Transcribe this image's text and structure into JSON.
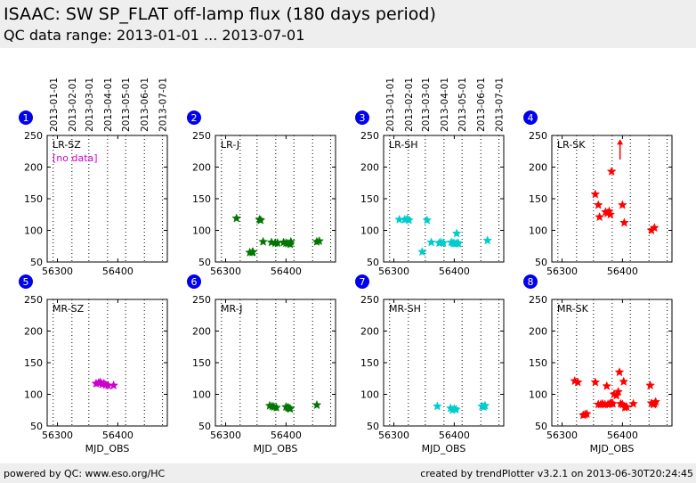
{
  "header": {
    "title": "ISAAC: SW SP_FLAT off-lamp flux (180 days period)",
    "subtitle": "QC data range: 2013-01-01 ... 2013-07-01"
  },
  "footer": {
    "left": "powered by QC: www.eso.org/HC",
    "right": "created by trendPlotter v3.2.1 on 2013-06-30T20:24:45"
  },
  "no_data_label": "[no data]",
  "colors": {
    "panel_badge": "#0000ee",
    "LR-SZ": "#cc00cc",
    "MR-SZ": "#cc00cc",
    "LR-J": "#007700",
    "MR-J": "#007700",
    "LR-SH": "#00cccc",
    "MR-SH": "#00cccc",
    "LR-SK": "#ff0000",
    "MR-SK": "#ff0000"
  },
  "chart_data": [
    {
      "panel": "1",
      "label": "LR-SZ",
      "type": "scatter",
      "marker": "star",
      "xlabel": "",
      "x_ticks": [
        56300,
        56400
      ],
      "y_ticks": [
        50,
        100,
        150,
        200,
        250
      ],
      "xlim": [
        56283,
        56482
      ],
      "ylim": [
        50,
        250
      ],
      "top_axis_dates": [
        "2013-01-01",
        "2013-02-01",
        "2013-03-01",
        "2013-04-01",
        "2013-05-01",
        "2013-06-01",
        "2013-07-01"
      ],
      "no_data": true,
      "points": []
    },
    {
      "panel": "2",
      "label": "LR-J",
      "type": "scatter",
      "marker": "star",
      "xlabel": "",
      "x_ticks": [
        56300,
        56400
      ],
      "y_ticks": [
        50,
        100,
        150,
        200,
        250
      ],
      "xlim": [
        56283,
        56482
      ],
      "ylim": [
        50,
        250
      ],
      "points": [
        [
          56318,
          119
        ],
        [
          56340,
          65
        ],
        [
          56344,
          65
        ],
        [
          56345,
          66
        ],
        [
          56356,
          117
        ],
        [
          56358,
          116
        ],
        [
          56362,
          82
        ],
        [
          56376,
          81
        ],
        [
          56382,
          80
        ],
        [
          56386,
          80
        ],
        [
          56396,
          81
        ],
        [
          56400,
          80
        ],
        [
          56403,
          79
        ],
        [
          56407,
          78
        ],
        [
          56408,
          82
        ],
        [
          56451,
          82
        ],
        [
          56455,
          83
        ]
      ]
    },
    {
      "panel": "3",
      "label": "LR-SH",
      "type": "scatter",
      "marker": "star",
      "xlabel": "",
      "x_ticks": [
        56300,
        56400
      ],
      "y_ticks": [
        50,
        100,
        150,
        200,
        250
      ],
      "xlim": [
        56283,
        56482
      ],
      "ylim": [
        50,
        250
      ],
      "top_axis_dates": [
        "2013-01-01",
        "2013-02-01",
        "2013-03-01",
        "2013-04-01",
        "2013-05-01",
        "2013-06-01",
        "2013-07-01"
      ],
      "points": [
        [
          56309,
          117
        ],
        [
          56318,
          117
        ],
        [
          56322,
          118
        ],
        [
          56325,
          116
        ],
        [
          56347,
          66
        ],
        [
          56355,
          116
        ],
        [
          56362,
          81
        ],
        [
          56375,
          80
        ],
        [
          56378,
          81
        ],
        [
          56382,
          80
        ],
        [
          56395,
          81
        ],
        [
          56398,
          80
        ],
        [
          56400,
          79
        ],
        [
          56403,
          79
        ],
        [
          56404,
          95
        ],
        [
          56406,
          80
        ],
        [
          56407,
          79
        ],
        [
          56455,
          84
        ]
      ]
    },
    {
      "panel": "4",
      "label": "LR-SK",
      "type": "scatter",
      "marker": "star",
      "xlabel": "",
      "x_ticks": [
        56300,
        56400
      ],
      "y_ticks": [
        50,
        100,
        150,
        200,
        250
      ],
      "xlim": [
        56283,
        56482
      ],
      "ylim": [
        50,
        250
      ],
      "points": [
        [
          56355,
          157
        ],
        [
          56360,
          140
        ],
        [
          56362,
          121
        ],
        [
          56372,
          129
        ],
        [
          56375,
          127
        ],
        [
          56378,
          130
        ],
        [
          56380,
          125
        ],
        [
          56382,
          193
        ],
        [
          56400,
          140
        ],
        [
          56403,
          112
        ],
        [
          56448,
          100
        ],
        [
          56453,
          104
        ]
      ],
      "arrows": [
        {
          "x": 56396,
          "from": 212,
          "to": 244
        }
      ]
    },
    {
      "panel": "5",
      "label": "MR-SZ",
      "type": "scatter",
      "marker": "star",
      "xlabel": "MJD_OBS",
      "x_ticks": [
        56300,
        56400
      ],
      "y_ticks": [
        50,
        100,
        150,
        200,
        250
      ],
      "xlim": [
        56283,
        56482
      ],
      "ylim": [
        50,
        250
      ],
      "points": [
        [
          56364,
          117
        ],
        [
          56368,
          118
        ],
        [
          56371,
          119
        ],
        [
          56374,
          116
        ],
        [
          56377,
          117
        ],
        [
          56380,
          115
        ],
        [
          56384,
          114
        ],
        [
          56393,
          114
        ]
      ]
    },
    {
      "panel": "6",
      "label": "MR-J",
      "type": "scatter",
      "marker": "star",
      "xlabel": "MJD_OBS",
      "x_ticks": [
        56300,
        56400
      ],
      "y_ticks": [
        50,
        100,
        150,
        200,
        250
      ],
      "xlim": [
        56283,
        56482
      ],
      "ylim": [
        50,
        250
      ],
      "points": [
        [
          56373,
          82
        ],
        [
          56377,
          81
        ],
        [
          56380,
          80
        ],
        [
          56384,
          79
        ],
        [
          56400,
          80
        ],
        [
          56403,
          79
        ],
        [
          56405,
          78
        ],
        [
          56407,
          77
        ],
        [
          56451,
          83
        ]
      ]
    },
    {
      "panel": "7",
      "label": "MR-SH",
      "type": "scatter",
      "marker": "star",
      "xlabel": "MJD_OBS",
      "x_ticks": [
        56300,
        56400
      ],
      "y_ticks": [
        50,
        100,
        150,
        200,
        250
      ],
      "xlim": [
        56283,
        56482
      ],
      "ylim": [
        50,
        250
      ],
      "points": [
        [
          56372,
          81
        ],
        [
          56394,
          78
        ],
        [
          56397,
          75
        ],
        [
          56400,
          77
        ],
        [
          56403,
          76
        ],
        [
          56446,
          81
        ],
        [
          56449,
          80
        ],
        [
          56451,
          82
        ]
      ]
    },
    {
      "panel": "8",
      "label": "MR-SK",
      "type": "scatter",
      "marker": "star",
      "xlabel": "MJD_OBS",
      "x_ticks": [
        56300,
        56400
      ],
      "y_ticks": [
        50,
        100,
        150,
        200,
        250
      ],
      "xlim": [
        56283,
        56482
      ],
      "ylim": [
        50,
        250
      ],
      "points": [
        [
          56321,
          121
        ],
        [
          56326,
          119
        ],
        [
          56335,
          67
        ],
        [
          56338,
          68
        ],
        [
          56341,
          69
        ],
        [
          56355,
          119
        ],
        [
          56360,
          84
        ],
        [
          56364,
          84
        ],
        [
          56367,
          85
        ],
        [
          56371,
          84
        ],
        [
          56374,
          113
        ],
        [
          56376,
          84
        ],
        [
          56379,
          85
        ],
        [
          56381,
          86
        ],
        [
          56384,
          85
        ],
        [
          56386,
          100
        ],
        [
          56390,
          98
        ],
        [
          56393,
          104
        ],
        [
          56395,
          135
        ],
        [
          56397,
          85
        ],
        [
          56400,
          84
        ],
        [
          56402,
          120
        ],
        [
          56404,
          79
        ],
        [
          56407,
          80
        ],
        [
          56418,
          85
        ],
        [
          56446,
          114
        ],
        [
          56448,
          86
        ],
        [
          56451,
          84
        ],
        [
          56453,
          85
        ],
        [
          56455,
          88
        ]
      ]
    }
  ]
}
